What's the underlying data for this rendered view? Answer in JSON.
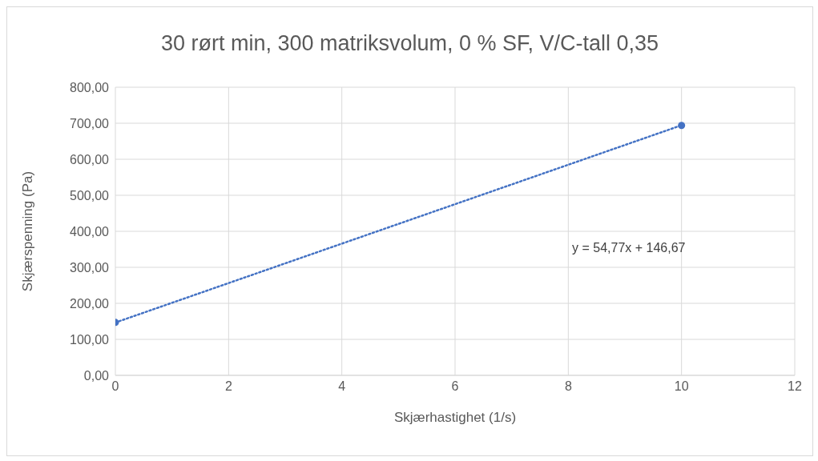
{
  "chart_data": {
    "type": "scatter",
    "title": "30 rørt min, 300 matriksvolum, 0 % SF, V/C-tall 0,35",
    "xlabel": "Skjærhastighet (1/s)",
    "ylabel": "Skjærspenning (Pa)",
    "x": [
      0,
      10
    ],
    "xlim": [
      0,
      12
    ],
    "xticks": [
      0,
      2,
      4,
      6,
      8,
      10,
      12
    ],
    "ylim": [
      0,
      800
    ],
    "yticks": [
      {
        "value": 0,
        "label": "0,00"
      },
      {
        "value": 100,
        "label": "100,00"
      },
      {
        "value": 200,
        "label": "200,00"
      },
      {
        "value": 300,
        "label": "300,00"
      },
      {
        "value": 400,
        "label": "400,00"
      },
      {
        "value": 500,
        "label": "500,00"
      },
      {
        "value": 600,
        "label": "600,00"
      },
      {
        "value": 700,
        "label": "700,00"
      },
      {
        "value": 800,
        "label": "800,00"
      }
    ],
    "grid": true,
    "marker": "circle",
    "series": [
      {
        "color": "#4472c4",
        "values": [
          147,
          694
        ]
      },
      {
        "type": "line",
        "color": "#4472c4",
        "values": [
          146.67,
          694.37
        ],
        "line_style": "dotted",
        "marker": "none"
      }
    ],
    "annotations": [
      "y = 54,77x + 146,67"
    ]
  }
}
